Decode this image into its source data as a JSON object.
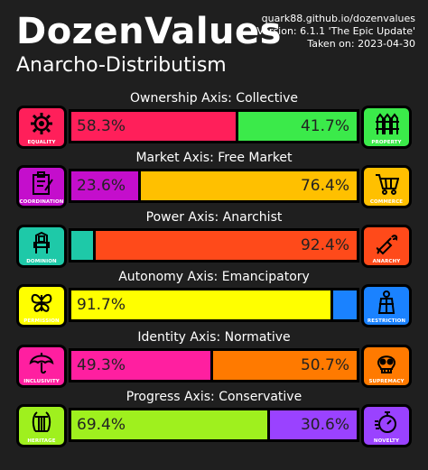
{
  "header": {
    "title": "DozenValues",
    "ideology": "Anarcho-Distributism",
    "site": "quark88.github.io/dozenvalues",
    "version": "Version: 6.1.1 'The Epic Update'",
    "taken_on": "Taken on: 2023-04-30"
  },
  "axes": [
    {
      "label": "Ownership Axis: Collective",
      "left_pct": 58.3,
      "right_pct": 41.7,
      "left_text": "58.3%",
      "right_text": "41.7%",
      "left_color": "#ff1f5a",
      "right_color": "#3bea4a",
      "left_icon": "gear-icon",
      "right_icon": "fence-icon",
      "left_cap": "EQUALITY",
      "right_cap": "PROPERTY"
    },
    {
      "label": "Market Axis: Free Market",
      "left_pct": 23.6,
      "right_pct": 76.4,
      "left_text": "23.6%",
      "right_text": "76.4%",
      "left_color": "#c40ecc",
      "right_color": "#ffc000",
      "left_icon": "clipboard-icon",
      "right_icon": "shopping-cart-icon",
      "left_cap": "COORDINATION",
      "right_cap": "COMMERCE"
    },
    {
      "label": "Power Axis: Anarchist",
      "left_pct": 7.6,
      "right_pct": 92.4,
      "left_text": "",
      "right_text": "92.4%",
      "left_color": "#1ec9a8",
      "right_color": "#ff4a1a",
      "left_icon": "throne-icon",
      "right_icon": "molotov-icon",
      "left_cap": "DOMINION",
      "right_cap": "ANARCHY"
    },
    {
      "label": "Autonomy Axis: Emancipatory",
      "left_pct": 91.7,
      "right_pct": 8.3,
      "left_text": "91.7%",
      "right_text": "",
      "left_color": "#ffff00",
      "right_color": "#1a82ff",
      "left_icon": "butterfly-icon",
      "right_icon": "straitjacket-icon",
      "left_cap": "PERMISSION",
      "right_cap": "RESTRICTION"
    },
    {
      "label": "Identity Axis: Normative",
      "left_pct": 49.3,
      "right_pct": 50.7,
      "left_text": "49.3%",
      "right_text": "50.7%",
      "left_color": "#ff1fa0",
      "right_color": "#ff7a00",
      "left_icon": "umbrella-icon",
      "right_icon": "skull-icon",
      "left_cap": "INCLUSIVITY",
      "right_cap": "SUPREMACY"
    },
    {
      "label": "Progress Axis: Conservative",
      "left_pct": 69.4,
      "right_pct": 30.6,
      "left_text": "69.4%",
      "right_text": "30.6%",
      "left_color": "#9ff01e",
      "right_color": "#9a42ff",
      "left_icon": "lyre-icon",
      "right_icon": "stopwatch-icon",
      "left_cap": "HERITAGE",
      "right_cap": "NOVELTY"
    }
  ]
}
